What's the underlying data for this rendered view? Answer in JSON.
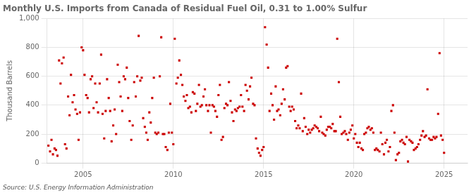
{
  "chart_data": {
    "type": "scatter",
    "title": "Monthly U.S. Imports from Canada of Residual Fuel Oil, 0.31 to 1.00% Sulfur",
    "ylabel": "Thousand Barrels",
    "annotation": "Source: U.S. Energy Information Administration",
    "color": "#cc0000",
    "marker": "square",
    "grid": true,
    "xlim": [
      2003.0,
      2026.3
    ],
    "xticks": [
      2005,
      2010,
      2015,
      2020,
      2025
    ],
    "ylim": [
      0,
      1000
    ],
    "yticks": [
      0,
      200,
      400,
      600,
      800,
      {
        "value": 1000,
        "label": "1,000"
      }
    ],
    "x": [
      2003.08,
      2003.17,
      2003.25,
      2003.33,
      2003.42,
      2003.5,
      2003.58,
      2003.67,
      2003.75,
      2003.83,
      2003.92,
      2004.0,
      2004.08,
      2004.17,
      2004.25,
      2004.33,
      2004.42,
      2004.5,
      2004.58,
      2004.67,
      2004.75,
      2004.83,
      2004.92,
      2005.0,
      2005.08,
      2005.17,
      2005.25,
      2005.33,
      2005.42,
      2005.5,
      2005.58,
      2005.67,
      2005.75,
      2005.83,
      2005.92,
      2006.0,
      2006.08,
      2006.17,
      2006.25,
      2006.33,
      2006.42,
      2006.5,
      2006.58,
      2006.67,
      2006.75,
      2006.83,
      2006.92,
      2007.0,
      2007.08,
      2007.17,
      2007.25,
      2007.33,
      2007.42,
      2007.5,
      2007.58,
      2007.67,
      2007.75,
      2007.83,
      2007.92,
      2008.0,
      2008.08,
      2008.17,
      2008.25,
      2008.33,
      2008.42,
      2008.5,
      2008.58,
      2008.67,
      2008.75,
      2008.83,
      2008.92,
      2009.0,
      2009.08,
      2009.17,
      2009.25,
      2009.33,
      2009.42,
      2009.5,
      2009.58,
      2009.67,
      2009.75,
      2009.83,
      2009.92,
      2010.0,
      2010.08,
      2010.17,
      2010.25,
      2010.33,
      2010.42,
      2010.5,
      2010.58,
      2010.67,
      2010.75,
      2010.83,
      2010.92,
      2011.0,
      2011.08,
      2011.17,
      2011.25,
      2011.33,
      2011.42,
      2011.5,
      2011.58,
      2011.67,
      2011.75,
      2011.83,
      2011.92,
      2012.0,
      2012.08,
      2012.17,
      2012.25,
      2012.33,
      2012.42,
      2012.5,
      2012.58,
      2012.67,
      2012.75,
      2012.83,
      2012.92,
      2013.0,
      2013.08,
      2013.17,
      2013.25,
      2013.33,
      2013.42,
      2013.5,
      2013.58,
      2013.67,
      2013.75,
      2013.83,
      2013.92,
      2014.0,
      2014.08,
      2014.17,
      2014.25,
      2014.33,
      2014.42,
      2014.5,
      2014.58,
      2014.67,
      2014.75,
      2014.83,
      2014.92,
      2015.0,
      2015.08,
      2015.17,
      2015.25,
      2015.33,
      2015.42,
      2015.5,
      2015.58,
      2015.67,
      2015.75,
      2015.83,
      2015.92,
      2016.0,
      2016.08,
      2016.17,
      2016.25,
      2016.33,
      2016.42,
      2016.5,
      2016.58,
      2016.67,
      2016.75,
      2016.83,
      2016.92,
      2017.0,
      2017.08,
      2017.17,
      2017.25,
      2017.33,
      2017.42,
      2017.5,
      2017.58,
      2017.67,
      2017.75,
      2017.83,
      2017.92,
      2018.0,
      2018.08,
      2018.17,
      2018.25,
      2018.33,
      2018.42,
      2018.5,
      2018.58,
      2018.67,
      2018.75,
      2018.83,
      2018.92,
      2019.0,
      2019.08,
      2019.17,
      2019.25,
      2019.33,
      2019.42,
      2019.5,
      2019.58,
      2019.67,
      2019.75,
      2019.83,
      2019.92,
      2020.0,
      2020.08,
      2020.17,
      2020.25,
      2020.33,
      2020.42,
      2020.5,
      2020.58,
      2020.67,
      2020.75,
      2020.83,
      2020.92,
      2021.0,
      2021.08,
      2021.17,
      2021.25,
      2021.33,
      2021.42,
      2021.5,
      2021.58,
      2021.67,
      2021.75,
      2021.83,
      2021.92,
      2022.0,
      2022.08,
      2022.17,
      2022.25,
      2022.33,
      2022.42,
      2022.5,
      2022.58,
      2022.67,
      2022.75,
      2022.83,
      2022.92,
      2023.0,
      2023.08,
      2023.17,
      2023.25,
      2023.33,
      2023.42,
      2023.5,
      2023.58,
      2023.67,
      2023.75,
      2023.83,
      2023.92,
      2024.0,
      2024.08,
      2024.17,
      2024.25,
      2024.33,
      2024.42,
      2024.5,
      2024.58,
      2024.67,
      2024.75,
      2024.83,
      2024.92,
      2025.0
    ],
    "values": [
      120,
      80,
      160,
      60,
      100,
      90,
      50,
      710,
      550,
      690,
      730,
      130,
      100,
      460,
      330,
      610,
      420,
      470,
      370,
      340,
      160,
      350,
      800,
      780,
      610,
      470,
      450,
      350,
      580,
      600,
      380,
      550,
      420,
      350,
      550,
      750,
      340,
      170,
      360,
      580,
      450,
      360,
      150,
      260,
      370,
      200,
      680,
      560,
      460,
      360,
      600,
      580,
      660,
      450,
      290,
      160,
      260,
      560,
      460,
      600,
      880,
      570,
      590,
      310,
      250,
      210,
      160,
      350,
      280,
      450,
      590,
      210,
      200,
      210,
      600,
      870,
      200,
      200,
      110,
      90,
      210,
      410,
      210,
      130,
      860,
      550,
      590,
      710,
      610,
      540,
      460,
      430,
      470,
      380,
      390,
      350,
      490,
      480,
      360,
      410,
      540,
      390,
      400,
      460,
      510,
      400,
      360,
      400,
      210,
      400,
      390,
      360,
      320,
      470,
      540,
      160,
      180,
      380,
      410,
      400,
      560,
      430,
      350,
      290,
      370,
      360,
      380,
      390,
      470,
      390,
      360,
      540,
      500,
      440,
      530,
      590,
      410,
      400,
      170,
      100,
      70,
      50,
      90,
      110,
      940,
      820,
      660,
      360,
      480,
      400,
      300,
      530,
      360,
      370,
      330,
      410,
      510,
      440,
      660,
      670,
      390,
      360,
      390,
      370,
      290,
      240,
      260,
      240,
      480,
      220,
      310,
      250,
      200,
      230,
      210,
      230,
      240,
      260,
      250,
      240,
      220,
      320,
      210,
      200,
      190,
      230,
      250,
      250,
      240,
      270,
      220,
      220,
      860,
      560,
      320,
      200,
      210,
      220,
      200,
      160,
      210,
      230,
      260,
      170,
      200,
      140,
      110,
      140,
      100,
      90,
      200,
      210,
      240,
      250,
      230,
      240,
      210,
      90,
      100,
      90,
      80,
      210,
      130,
      60,
      140,
      160,
      80,
      110,
      360,
      400,
      210,
      20,
      60,
      70,
      150,
      160,
      140,
      130,
      180,
      10,
      160,
      150,
      140,
      90,
      100,
      110,
      130,
      160,
      190,
      220,
      180,
      190,
      510,
      170,
      160,
      160,
      180,
      170,
      180,
      340,
      760,
      190,
      160,
      70
    ]
  }
}
